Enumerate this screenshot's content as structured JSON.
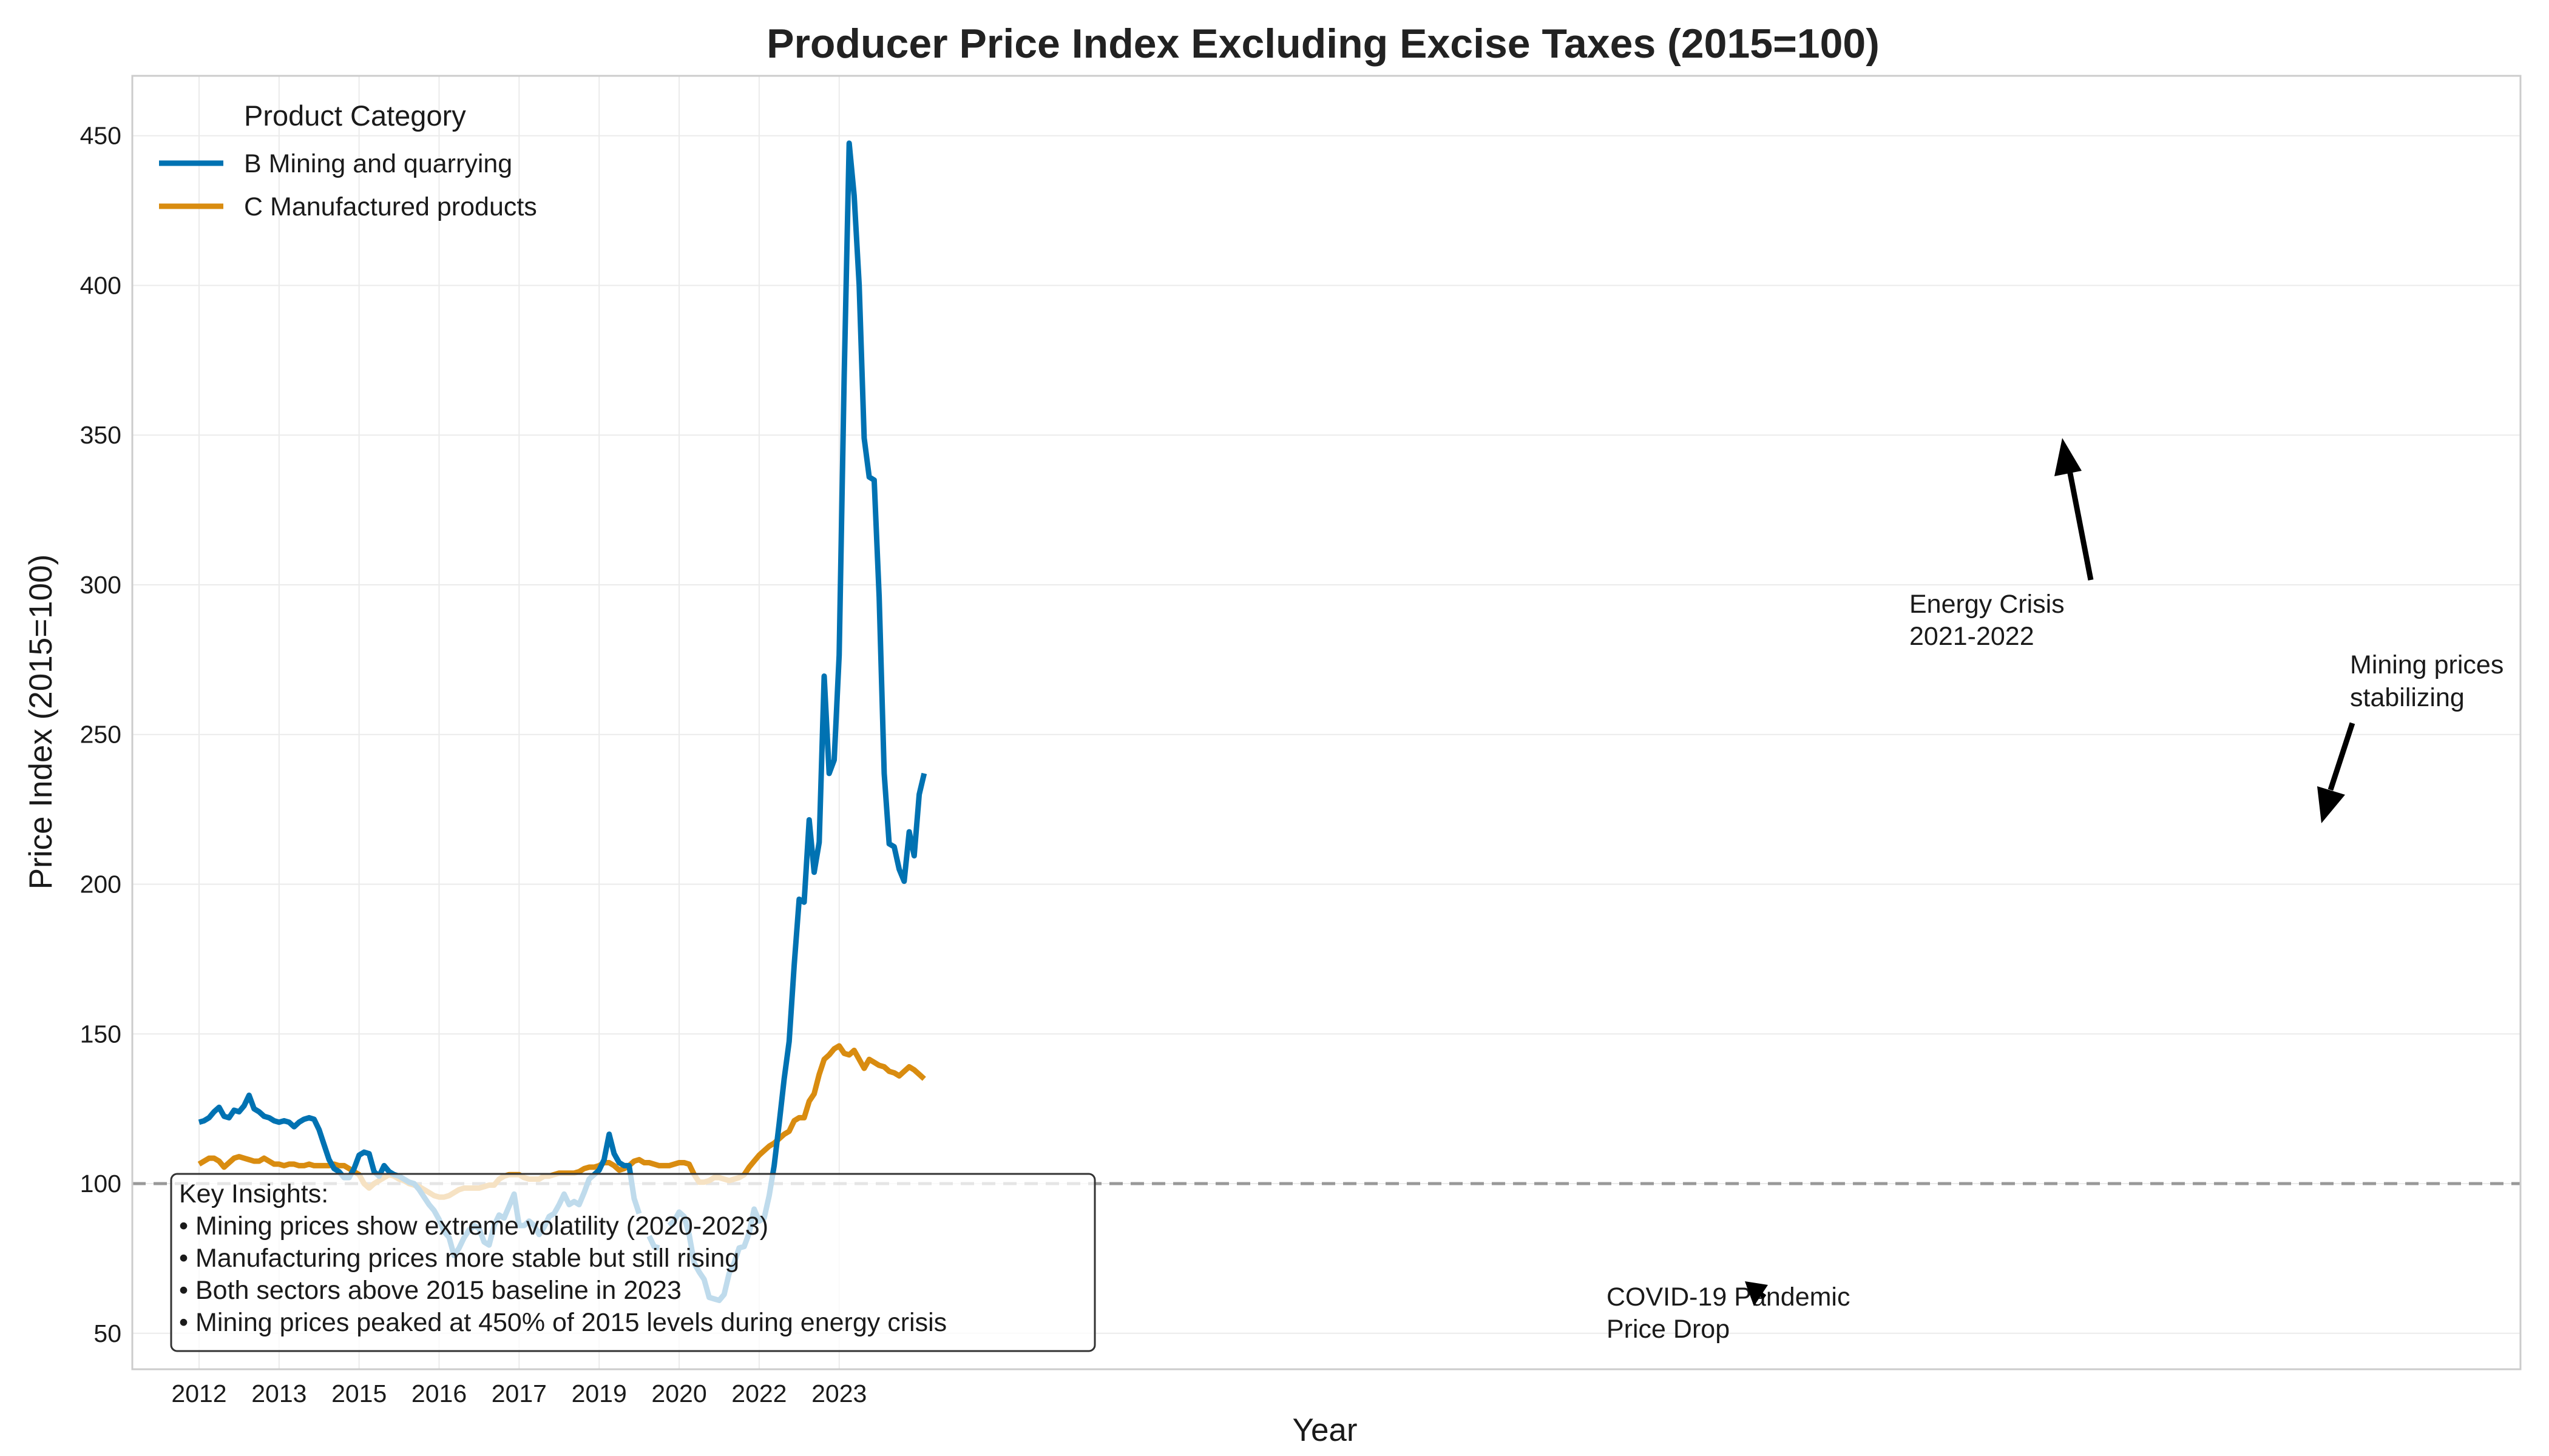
{
  "chart_data": {
    "type": "line",
    "title": "Producer Price Index Excluding Excise Taxes (2015=100)",
    "xlabel": "Year",
    "ylabel": "Price Index (2015=100)",
    "ylim": [
      38,
      470
    ],
    "yticks": [
      50,
      100,
      150,
      200,
      250,
      300,
      350,
      400,
      450
    ],
    "x_tick_labels": [
      "2012",
      "2013",
      "2015",
      "2016",
      "2017",
      "2019",
      "2020",
      "2022",
      "2023"
    ],
    "grid": true,
    "baseline": 100,
    "legend": {
      "title": "Product Category",
      "placement": "upper-left"
    },
    "series": [
      {
        "name": "B Mining and quarrying",
        "color": "#0072b2",
        "values": [
          [
            0.0,
            120.5
          ],
          [
            0.25,
            121
          ],
          [
            0.5,
            122
          ],
          [
            0.75,
            124
          ],
          [
            1.0,
            125.5
          ],
          [
            1.25,
            122.5
          ],
          [
            1.5,
            122
          ],
          [
            1.75,
            124.5
          ],
          [
            2.0,
            124
          ],
          [
            2.25,
            126
          ],
          [
            2.5,
            129.5
          ],
          [
            2.75,
            125
          ],
          [
            3.0,
            124
          ],
          [
            3.25,
            122.5
          ],
          [
            3.5,
            122
          ],
          [
            3.75,
            121
          ],
          [
            4.0,
            120.5
          ],
          [
            4.25,
            121
          ],
          [
            4.5,
            120.5
          ],
          [
            4.75,
            119
          ],
          [
            5.0,
            120.5
          ],
          [
            5.25,
            121.5
          ],
          [
            5.5,
            122
          ],
          [
            5.75,
            121.5
          ],
          [
            6.0,
            118
          ],
          [
            6.25,
            113
          ],
          [
            6.5,
            108
          ],
          [
            6.75,
            105
          ],
          [
            7.0,
            104
          ],
          [
            7.25,
            102
          ],
          [
            7.5,
            102
          ],
          [
            7.75,
            105
          ],
          [
            8.0,
            109.5
          ],
          [
            8.25,
            110.5
          ],
          [
            8.5,
            110
          ],
          [
            8.75,
            104
          ],
          [
            9.0,
            102.5
          ],
          [
            9.25,
            106
          ],
          [
            9.5,
            104
          ],
          [
            9.75,
            103
          ],
          [
            10.0,
            102.5
          ],
          [
            10.25,
            101.5
          ],
          [
            10.5,
            100.5
          ],
          [
            10.75,
            100
          ],
          [
            11.0,
            98
          ],
          [
            11.25,
            95.5
          ],
          [
            11.5,
            93
          ],
          [
            11.75,
            91
          ],
          [
            12.0,
            88
          ],
          [
            12.25,
            84
          ],
          [
            12.5,
            82
          ],
          [
            12.75,
            76
          ],
          [
            13.0,
            78.5
          ],
          [
            13.25,
            82
          ],
          [
            13.5,
            84.5
          ],
          [
            13.75,
            86
          ],
          [
            14.0,
            85
          ],
          [
            14.25,
            80.5
          ],
          [
            14.5,
            79.5
          ],
          [
            14.75,
            86
          ],
          [
            15.0,
            89.5
          ],
          [
            15.25,
            88.5
          ],
          [
            15.5,
            92.5
          ],
          [
            15.75,
            96.5
          ],
          [
            16.0,
            86
          ],
          [
            16.25,
            86
          ],
          [
            16.5,
            87.5
          ],
          [
            16.75,
            86
          ],
          [
            17.0,
            83
          ],
          [
            17.25,
            85.5
          ],
          [
            17.5,
            89
          ],
          [
            17.75,
            90
          ],
          [
            18.0,
            93
          ],
          [
            18.25,
            96.5
          ],
          [
            18.5,
            93
          ],
          [
            18.75,
            94
          ],
          [
            19.0,
            93
          ],
          [
            19.25,
            97
          ],
          [
            19.5,
            101.5
          ],
          [
            19.75,
            103
          ],
          [
            20.0,
            104.5
          ],
          [
            20.25,
            108
          ],
          [
            20.5,
            116.5
          ],
          [
            20.75,
            110
          ],
          [
            21.0,
            107
          ],
          [
            21.25,
            106
          ],
          [
            21.5,
            106
          ],
          [
            21.75,
            95
          ],
          [
            22.0,
            90
          ],
          null,
          [
            22.5,
            82.5
          ],
          [
            22.75,
            79
          ],
          [
            23.0,
            78.5
          ],
          null,
          [
            23.5,
            86
          ],
          [
            23.75,
            87.5
          ],
          [
            24.0,
            90.5
          ],
          [
            24.25,
            89
          ],
          [
            24.5,
            83
          ],
          [
            24.75,
            73.5
          ],
          [
            25.0,
            70.5
          ],
          [
            25.25,
            68
          ],
          [
            25.5,
            62
          ],
          [
            25.75,
            61.5
          ],
          [
            26.0,
            61
          ],
          [
            26.25,
            63
          ],
          [
            26.5,
            70
          ],
          [
            26.75,
            73.5
          ],
          [
            27.0,
            78.5
          ],
          [
            27.25,
            79
          ],
          [
            27.5,
            83.5
          ],
          [
            27.75,
            91.5
          ],
          [
            28.0,
            87.5
          ],
          [
            28.25,
            88.5
          ],
          [
            28.5,
            96
          ],
          [
            28.75,
            106
          ],
          [
            29.0,
            120
          ],
          [
            29.25,
            135
          ],
          [
            29.5,
            147.5
          ],
          [
            29.75,
            173
          ],
          [
            30.0,
            195
          ],
          [
            30.25,
            194
          ],
          [
            30.5,
            221.5
          ],
          [
            30.75,
            204
          ],
          [
            31.0,
            214
          ],
          [
            31.25,
            269.5
          ],
          [
            31.5,
            237
          ],
          [
            31.75,
            241.5
          ],
          [
            32.0,
            276.5
          ],
          [
            32.25,
            370
          ],
          [
            32.5,
            447.5
          ],
          [
            32.75,
            430
          ],
          [
            33.0,
            400
          ],
          [
            33.25,
            349
          ],
          [
            33.5,
            336
          ],
          [
            33.75,
            335
          ],
          [
            34.0,
            296
          ],
          [
            34.25,
            237
          ],
          [
            34.5,
            213.5
          ],
          [
            34.75,
            212.5
          ],
          [
            35.0,
            205
          ],
          [
            35.25,
            201
          ],
          [
            35.5,
            217.5
          ],
          [
            35.75,
            209.5
          ],
          [
            36.0,
            230
          ],
          [
            36.25,
            237
          ]
        ]
      },
      {
        "name": "C Manufactured products",
        "color": "#d98c10",
        "values": [
          [
            0.0,
            106.5
          ],
          [
            0.25,
            107.5
          ],
          [
            0.5,
            108.5
          ],
          [
            0.75,
            108.5
          ],
          [
            1.0,
            107.5
          ],
          [
            1.25,
            105.5
          ],
          [
            1.5,
            107
          ],
          [
            1.75,
            108.5
          ],
          [
            2.0,
            109
          ],
          [
            2.25,
            108.5
          ],
          [
            2.5,
            108
          ],
          [
            2.75,
            107.5
          ],
          [
            3.0,
            107.5
          ],
          [
            3.25,
            108.5
          ],
          [
            3.5,
            107.5
          ],
          [
            3.75,
            106.5
          ],
          [
            4.0,
            106.5
          ],
          [
            4.25,
            106
          ],
          [
            4.5,
            106.5
          ],
          [
            4.75,
            106.5
          ],
          [
            5.0,
            106
          ],
          [
            5.25,
            106
          ],
          [
            5.5,
            106.5
          ],
          [
            5.75,
            106
          ],
          [
            6.0,
            106
          ],
          [
            6.25,
            106
          ],
          [
            6.5,
            106
          ],
          [
            6.75,
            106.5
          ],
          [
            7.0,
            106
          ],
          [
            7.25,
            106
          ],
          [
            7.5,
            105
          ],
          [
            7.75,
            104
          ],
          [
            8.0,
            103
          ],
          [
            8.25,
            100
          ],
          [
            8.5,
            98.5
          ],
          [
            8.75,
            100
          ],
          [
            9.0,
            101
          ],
          [
            9.25,
            102
          ],
          [
            9.5,
            103
          ],
          [
            9.75,
            102.5
          ],
          [
            10.0,
            101.5
          ],
          [
            10.25,
            101
          ],
          [
            10.5,
            100
          ],
          [
            10.75,
            99.5
          ],
          [
            11.0,
            99
          ],
          [
            11.25,
            98
          ],
          [
            11.5,
            97
          ],
          [
            11.75,
            96
          ],
          [
            12.0,
            95.5
          ],
          [
            12.25,
            95.5
          ],
          [
            12.5,
            96
          ],
          [
            12.75,
            97
          ],
          [
            13.0,
            98
          ],
          [
            13.25,
            98.5
          ],
          [
            13.5,
            98.5
          ],
          [
            13.75,
            98.5
          ],
          [
            14.0,
            98.5
          ],
          [
            14.25,
            99
          ],
          [
            14.5,
            99.5
          ],
          [
            14.75,
            99.5
          ],
          [
            15.0,
            101.5
          ],
          [
            15.25,
            102.5
          ],
          [
            15.5,
            103
          ],
          [
            15.75,
            103
          ],
          [
            16.0,
            103
          ],
          [
            16.25,
            102
          ],
          [
            16.5,
            101.5
          ],
          [
            16.75,
            101.5
          ],
          [
            17.0,
            101.5
          ],
          [
            17.25,
            102.5
          ],
          [
            17.5,
            102.5
          ],
          [
            17.75,
            103
          ],
          [
            18.0,
            103.5
          ],
          [
            18.25,
            103.5
          ],
          [
            18.5,
            103.5
          ],
          [
            18.75,
            103.5
          ],
          [
            19.0,
            104
          ],
          [
            19.25,
            105
          ],
          [
            19.5,
            105.5
          ],
          [
            19.75,
            105.5
          ],
          [
            20.0,
            106
          ],
          [
            20.25,
            107
          ],
          [
            20.5,
            107
          ],
          [
            20.75,
            106
          ],
          [
            21.0,
            104.5
          ],
          [
            21.25,
            105
          ],
          [
            21.5,
            106
          ],
          [
            21.75,
            107.5
          ],
          [
            22.0,
            108
          ],
          [
            22.25,
            107
          ],
          [
            22.5,
            107
          ],
          [
            22.75,
            106.5
          ],
          [
            23.0,
            106
          ],
          [
            23.25,
            106
          ],
          [
            23.5,
            106
          ],
          [
            23.75,
            106.5
          ],
          [
            24.0,
            107
          ],
          [
            24.25,
            107
          ],
          [
            24.5,
            106.5
          ],
          [
            24.75,
            103
          ],
          [
            25.0,
            100.5
          ],
          [
            25.25,
            100.5
          ],
          [
            25.5,
            101
          ],
          [
            25.75,
            102
          ],
          [
            26.0,
            102
          ],
          [
            26.25,
            101.5
          ],
          [
            26.5,
            101
          ],
          [
            26.75,
            101.5
          ],
          [
            27.0,
            102
          ],
          [
            27.25,
            103
          ],
          [
            27.5,
            105.5
          ],
          [
            27.75,
            107.5
          ],
          [
            28.0,
            109.5
          ],
          [
            28.25,
            111
          ],
          [
            28.5,
            112.5
          ],
          [
            28.75,
            113.5
          ],
          [
            29.0,
            115
          ],
          [
            29.25,
            116.5
          ],
          [
            29.5,
            117.5
          ],
          [
            29.75,
            121
          ],
          [
            30.0,
            122
          ],
          [
            30.25,
            122
          ],
          [
            30.5,
            127.5
          ],
          [
            30.75,
            130
          ],
          [
            31.0,
            136.5
          ],
          [
            31.25,
            141.5
          ],
          [
            31.5,
            143
          ],
          [
            31.75,
            145
          ],
          [
            32.0,
            146
          ],
          [
            32.25,
            143.5
          ],
          [
            32.5,
            143
          ],
          [
            32.75,
            144.5
          ],
          [
            33.0,
            141.5
          ],
          [
            33.25,
            138.5
          ],
          [
            33.5,
            141.5
          ],
          [
            33.75,
            140.5
          ],
          [
            34.0,
            139.5
          ],
          [
            34.25,
            139
          ],
          [
            34.5,
            137.5
          ],
          [
            34.75,
            137
          ],
          [
            35.0,
            136
          ],
          [
            35.25,
            137.5
          ],
          [
            35.5,
            139
          ],
          [
            35.75,
            138
          ],
          [
            36.0,
            136.5
          ],
          [
            36.25,
            135
          ]
        ]
      }
    ],
    "annotations": [
      {
        "lines": [
          "Energy Crisis",
          "2021-2022"
        ]
      },
      {
        "lines": [
          "Mining prices",
          "stabilizing"
        ]
      },
      {
        "lines": [
          "COVID-19 Pandemic",
          "Price Drop"
        ]
      }
    ],
    "insights": {
      "title": "Key Insights:",
      "items": [
        "• Mining prices show extreme volatility (2020-2023)",
        "• Manufacturing prices more stable but still rising",
        "• Both sectors above 2015 baseline in 2023",
        "• Mining prices peaked at 450% of 2015 levels during energy crisis"
      ]
    }
  }
}
